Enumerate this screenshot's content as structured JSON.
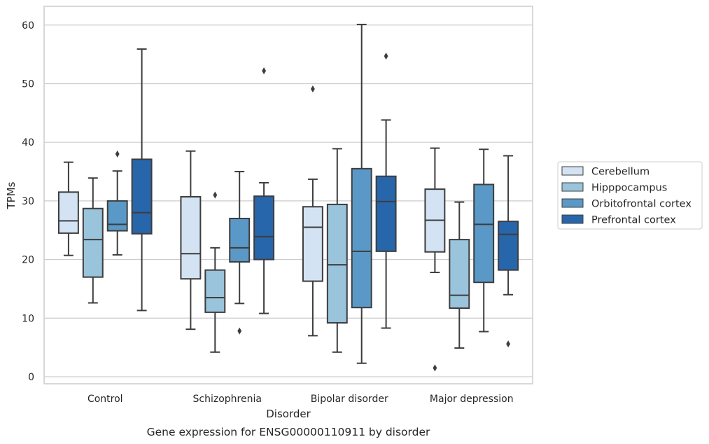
{
  "chart_data": {
    "type": "box",
    "caption": "Gene expression for ENSG00000110911 by disorder",
    "xlabel": "Disorder",
    "ylabel": "TPMs",
    "ylim": [
      -1.2,
      63.2
    ],
    "yticks": [
      0,
      10,
      20,
      30,
      40,
      50,
      60
    ],
    "grid": true,
    "legend_position": "right",
    "categories": [
      "Control",
      "Schizophrenia",
      "Bipolar disorder",
      "Major depression"
    ],
    "series": [
      {
        "name": "Cerebellum",
        "color": "#d4e3f3",
        "boxes": [
          {
            "whisker_low": 20.7,
            "q1": 24.5,
            "median": 26.6,
            "q3": 31.5,
            "whisker_high": 36.6,
            "outliers": []
          },
          {
            "whisker_low": 8.1,
            "q1": 16.7,
            "median": 21.0,
            "q3": 30.7,
            "whisker_high": 38.5,
            "outliers": []
          },
          {
            "whisker_low": 7.0,
            "q1": 16.3,
            "median": 25.5,
            "q3": 29.0,
            "whisker_high": 33.7,
            "outliers": [
              49.1
            ]
          },
          {
            "whisker_low": 17.8,
            "q1": 21.3,
            "median": 26.7,
            "q3": 32.0,
            "whisker_high": 39.0,
            "outliers": [
              1.5
            ]
          }
        ]
      },
      {
        "name": "Hipppocampus",
        "color": "#9ac3dc",
        "boxes": [
          {
            "whisker_low": 12.6,
            "q1": 17.0,
            "median": 23.4,
            "q3": 28.7,
            "whisker_high": 33.9,
            "outliers": []
          },
          {
            "whisker_low": 4.2,
            "q1": 11.0,
            "median": 13.5,
            "q3": 18.2,
            "whisker_high": 22.0,
            "outliers": [
              31.0
            ]
          },
          {
            "whisker_low": 4.2,
            "q1": 9.2,
            "median": 19.1,
            "q3": 29.4,
            "whisker_high": 38.9,
            "outliers": []
          },
          {
            "whisker_low": 4.9,
            "q1": 11.7,
            "median": 13.9,
            "q3": 23.4,
            "whisker_high": 29.8,
            "outliers": []
          }
        ]
      },
      {
        "name": "Orbitofrontal cortex",
        "color": "#5a99c7",
        "boxes": [
          {
            "whisker_low": 20.8,
            "q1": 24.9,
            "median": 26.0,
            "q3": 30.0,
            "whisker_high": 35.1,
            "outliers": [
              38.0
            ]
          },
          {
            "whisker_low": 12.5,
            "q1": 19.6,
            "median": 22.0,
            "q3": 27.0,
            "whisker_high": 35.0,
            "outliers": [
              7.8
            ]
          },
          {
            "whisker_low": 2.3,
            "q1": 11.8,
            "median": 21.4,
            "q3": 35.5,
            "whisker_high": 60.1,
            "outliers": []
          },
          {
            "whisker_low": 7.7,
            "q1": 16.1,
            "median": 26.0,
            "q3": 32.8,
            "whisker_high": 38.8,
            "outliers": []
          }
        ]
      },
      {
        "name": "Prefrontal cortex",
        "color": "#2866ab",
        "boxes": [
          {
            "whisker_low": 11.3,
            "q1": 24.4,
            "median": 28.0,
            "q3": 37.1,
            "whisker_high": 55.9,
            "outliers": []
          },
          {
            "whisker_low": 10.8,
            "q1": 20.0,
            "median": 23.9,
            "q3": 30.8,
            "whisker_high": 33.1,
            "outliers": [
              52.2
            ]
          },
          {
            "whisker_low": 8.3,
            "q1": 21.4,
            "median": 29.9,
            "q3": 34.2,
            "whisker_high": 43.8,
            "outliers": [
              54.7
            ]
          },
          {
            "whisker_low": 14.0,
            "q1": 18.2,
            "median": 24.3,
            "q3": 26.5,
            "whisker_high": 37.7,
            "outliers": [
              5.6
            ]
          }
        ]
      }
    ]
  }
}
